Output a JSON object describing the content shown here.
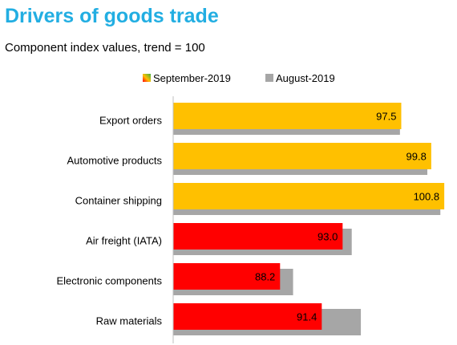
{
  "header": {
    "title": "Drivers of goods trade",
    "subtitle": "Component index values, trend = 100"
  },
  "colors": {
    "above_trend": "#ffc000",
    "below_trend": "#ff0000",
    "previous": "#a6a6a6"
  },
  "chart_data": {
    "type": "bar",
    "orientation": "horizontal",
    "categories": [
      "Export orders",
      "Automotive products",
      "Container shipping",
      "Air freight (IATA)",
      "Electronic components",
      "Raw materials"
    ],
    "series": [
      {
        "name": "September-2019",
        "values": [
          97.5,
          99.8,
          100.8,
          93.0,
          88.2,
          91.4
        ],
        "value_labels": [
          "97.5",
          "99.8",
          "100.8",
          "93.0",
          "88.2",
          "91.4"
        ]
      },
      {
        "name": "August-2019",
        "values": [
          97.4,
          99.5,
          100.5,
          93.7,
          89.2,
          94.4
        ]
      }
    ],
    "xlim": [
      80,
      101.1
    ],
    "legend": "top",
    "grid": false
  }
}
